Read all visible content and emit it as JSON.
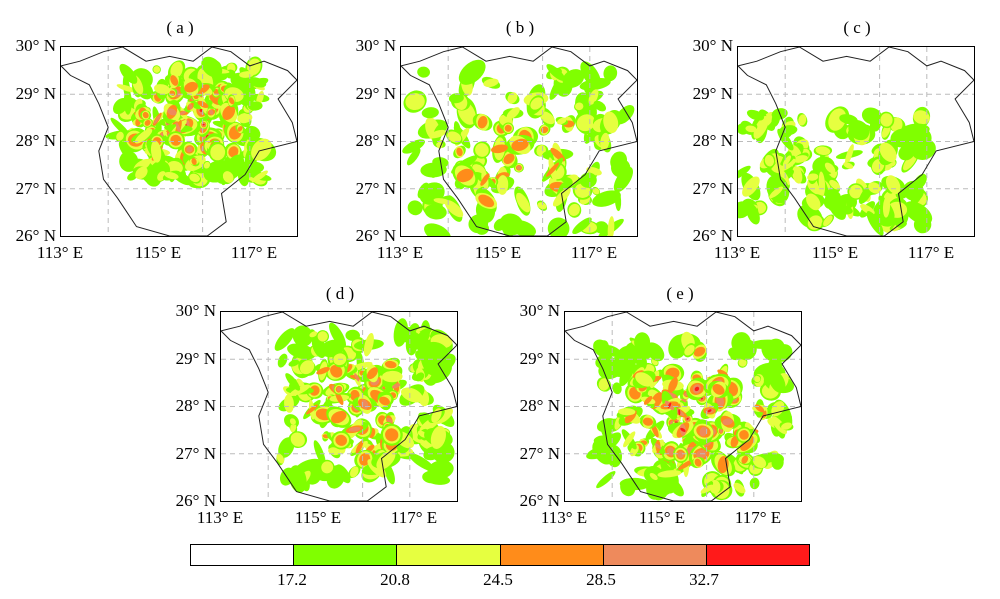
{
  "panels": [
    {
      "id": "a",
      "title": "( a )",
      "style": "intense"
    },
    {
      "id": "b",
      "title": "( b )",
      "style": "ring"
    },
    {
      "id": "c",
      "title": "( c )",
      "style": "weak"
    },
    {
      "id": "d",
      "title": "( d )",
      "style": "ring-strong"
    },
    {
      "id": "e",
      "title": "( e )",
      "style": "intense2"
    }
  ],
  "axes": {
    "lat_labels": [
      "30° N",
      "29° N",
      "28° N",
      "27° N",
      "26° N"
    ],
    "lon_labels": [
      "113° E",
      "115° E",
      "117° E"
    ]
  },
  "colorbar": {
    "colors": [
      "#ffffff",
      "#80ff00",
      "#e6ff40",
      "#ff8c1a",
      "#ee8a5c",
      "#ff1a1a"
    ],
    "ticks": [
      "17.2",
      "20.8",
      "24.5",
      "28.5",
      "32.7"
    ]
  },
  "chart_data": {
    "type": "heatmap",
    "levels": [
      17.2,
      20.8,
      24.5,
      28.5,
      32.7
    ],
    "lat_range": [
      26,
      30
    ],
    "lon_range": [
      113,
      118
    ],
    "grid": true
  }
}
